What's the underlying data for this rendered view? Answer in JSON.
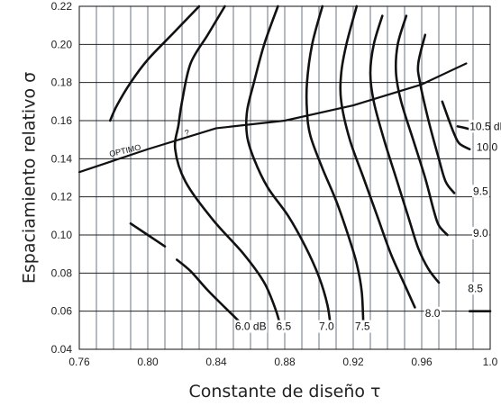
{
  "chart_data": {
    "type": "line",
    "xlabel": "Constante de diseño τ",
    "ylabel": "Espaciamiento relativo σ",
    "xlim": [
      0.76,
      1.0
    ],
    "ylim": [
      0.04,
      0.22
    ],
    "grid": true,
    "x_ticks": [
      "0.76",
      "0.80",
      "0.84",
      "0.88",
      "0.92",
      "0.96",
      "1.0"
    ],
    "y_ticks": [
      "0.04",
      "0.06",
      "0.08",
      "0.10",
      "0.12",
      "0.14",
      "0.16",
      "0.18",
      "0.20",
      "0.22"
    ],
    "series": [
      {
        "name": "6.0 dB",
        "points": [
          [
            0.778,
            0.16
          ],
          [
            0.782,
            0.168
          ],
          [
            0.79,
            0.18
          ],
          [
            0.8,
            0.192
          ],
          [
            0.815,
            0.206
          ],
          [
            0.83,
            0.22
          ]
        ]
      },
      {
        "name": "6.0 dB",
        "points": [
          [
            0.79,
            0.106
          ],
          [
            0.8,
            0.1
          ],
          [
            0.81,
            0.094
          ]
        ]
      },
      {
        "name": "6.0 dB",
        "points": [
          [
            0.817,
            0.087
          ],
          [
            0.825,
            0.081
          ],
          [
            0.835,
            0.071
          ],
          [
            0.845,
            0.062
          ],
          [
            0.853,
            0.055
          ]
        ]
      },
      {
        "name": "6.5",
        "points": [
          [
            0.845,
            0.22
          ],
          [
            0.835,
            0.205
          ],
          [
            0.825,
            0.19
          ],
          [
            0.82,
            0.17
          ],
          [
            0.818,
            0.158
          ],
          [
            0.816,
            0.145
          ],
          [
            0.822,
            0.128
          ],
          [
            0.838,
            0.108
          ],
          [
            0.856,
            0.09
          ],
          [
            0.868,
            0.075
          ],
          [
            0.875,
            0.06
          ],
          [
            0.878,
            0.05
          ]
        ]
      },
      {
        "name": "7.0",
        "points": [
          [
            0.876,
            0.22
          ],
          [
            0.868,
            0.2
          ],
          [
            0.862,
            0.18
          ],
          [
            0.858,
            0.165
          ],
          [
            0.858,
            0.152
          ],
          [
            0.862,
            0.14
          ],
          [
            0.87,
            0.125
          ],
          [
            0.882,
            0.11
          ],
          [
            0.892,
            0.094
          ],
          [
            0.9,
            0.078
          ],
          [
            0.905,
            0.063
          ],
          [
            0.907,
            0.05
          ]
        ]
      },
      {
        "name": "7.5",
        "points": [
          [
            0.902,
            0.22
          ],
          [
            0.896,
            0.2
          ],
          [
            0.893,
            0.18
          ],
          [
            0.893,
            0.165
          ],
          [
            0.895,
            0.152
          ],
          [
            0.902,
            0.135
          ],
          [
            0.91,
            0.118
          ],
          [
            0.917,
            0.1
          ],
          [
            0.922,
            0.085
          ],
          [
            0.925,
            0.07
          ],
          [
            0.926,
            0.05
          ]
        ]
      },
      {
        "name": "8.0",
        "points": [
          [
            0.922,
            0.22
          ],
          [
            0.916,
            0.2
          ],
          [
            0.913,
            0.185
          ],
          [
            0.913,
            0.17
          ],
          [
            0.918,
            0.15
          ],
          [
            0.926,
            0.13
          ],
          [
            0.934,
            0.11
          ],
          [
            0.942,
            0.09
          ],
          [
            0.95,
            0.074
          ],
          [
            0.956,
            0.062
          ]
        ]
      },
      {
        "name": "8.5",
        "points": [
          [
            0.937,
            0.215
          ],
          [
            0.932,
            0.2
          ],
          [
            0.93,
            0.185
          ],
          [
            0.932,
            0.17
          ],
          [
            0.938,
            0.15
          ],
          [
            0.945,
            0.13
          ],
          [
            0.952,
            0.11
          ],
          [
            0.958,
            0.093
          ],
          [
            0.964,
            0.082
          ],
          [
            0.97,
            0.075
          ]
        ]
      },
      {
        "name": "9.0",
        "points": [
          [
            0.951,
            0.215
          ],
          [
            0.946,
            0.2
          ],
          [
            0.945,
            0.185
          ],
          [
            0.948,
            0.17
          ],
          [
            0.955,
            0.15
          ],
          [
            0.962,
            0.13
          ],
          [
            0.967,
            0.113
          ],
          [
            0.97,
            0.105
          ],
          [
            0.975,
            0.1
          ]
        ]
      },
      {
        "name": "9.5",
        "points": [
          [
            0.962,
            0.205
          ],
          [
            0.958,
            0.19
          ],
          [
            0.959,
            0.18
          ],
          [
            0.964,
            0.16
          ],
          [
            0.97,
            0.14
          ],
          [
            0.974,
            0.128
          ],
          [
            0.979,
            0.122
          ]
        ]
      },
      {
        "name": "10.0",
        "points": [
          [
            0.972,
            0.17
          ],
          [
            0.976,
            0.16
          ],
          [
            0.979,
            0.153
          ],
          [
            0.982,
            0.148
          ],
          [
            0.988,
            0.145
          ]
        ]
      },
      {
        "name": "10.5 dB",
        "points": [
          [
            0.981,
            0.157
          ],
          [
            0.986,
            0.156
          ],
          [
            0.99,
            0.155
          ]
        ]
      },
      {
        "name": "8.0",
        "points": [
          [
            0.988,
            0.06
          ],
          [
            1.0,
            0.06
          ]
        ]
      },
      {
        "name": "OPTIMO",
        "points": [
          [
            0.76,
            0.133
          ],
          [
            0.8,
            0.145
          ],
          [
            0.84,
            0.156
          ],
          [
            0.88,
            0.16
          ],
          [
            0.92,
            0.168
          ],
          [
            0.96,
            0.179
          ],
          [
            0.986,
            0.19
          ]
        ]
      }
    ],
    "annotations": [
      {
        "text": "OPTIMO",
        "x": 0.778,
        "y": 0.141
      },
      {
        "text": "?",
        "x": 0.822,
        "y": 0.152
      }
    ],
    "curve_labels": [
      {
        "text": "6.0 dB",
        "x": 0.851,
        "y": 0.052
      },
      {
        "text": "6.5",
        "x": 0.875,
        "y": 0.052
      },
      {
        "text": "7.0",
        "x": 0.9,
        "y": 0.052
      },
      {
        "text": "7.5",
        "x": 0.921,
        "y": 0.052
      },
      {
        "text": "8.0",
        "x": 0.962,
        "y": 0.059
      },
      {
        "text": "8.5",
        "x": 0.987,
        "y": 0.072
      },
      {
        "text": "9.0",
        "x": 0.99,
        "y": 0.101
      },
      {
        "text": "9.5",
        "x": 0.99,
        "y": 0.123
      },
      {
        "text": "10.0",
        "x": 0.992,
        "y": 0.146
      },
      {
        "text": "10.5 dB",
        "x": 0.988,
        "y": 0.157
      }
    ]
  }
}
